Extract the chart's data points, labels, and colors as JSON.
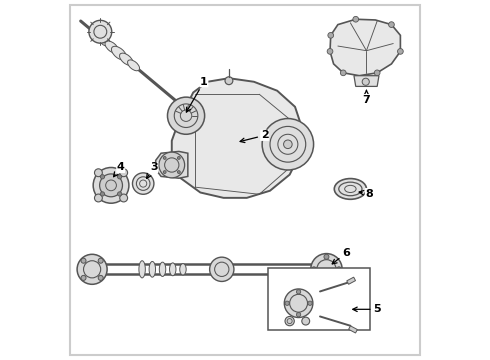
{
  "background_color": "#ffffff",
  "border_color": "#cccccc",
  "line_color": "#555555",
  "label_color": "#000000",
  "figsize": [
    4.9,
    3.6
  ],
  "dpi": 100
}
